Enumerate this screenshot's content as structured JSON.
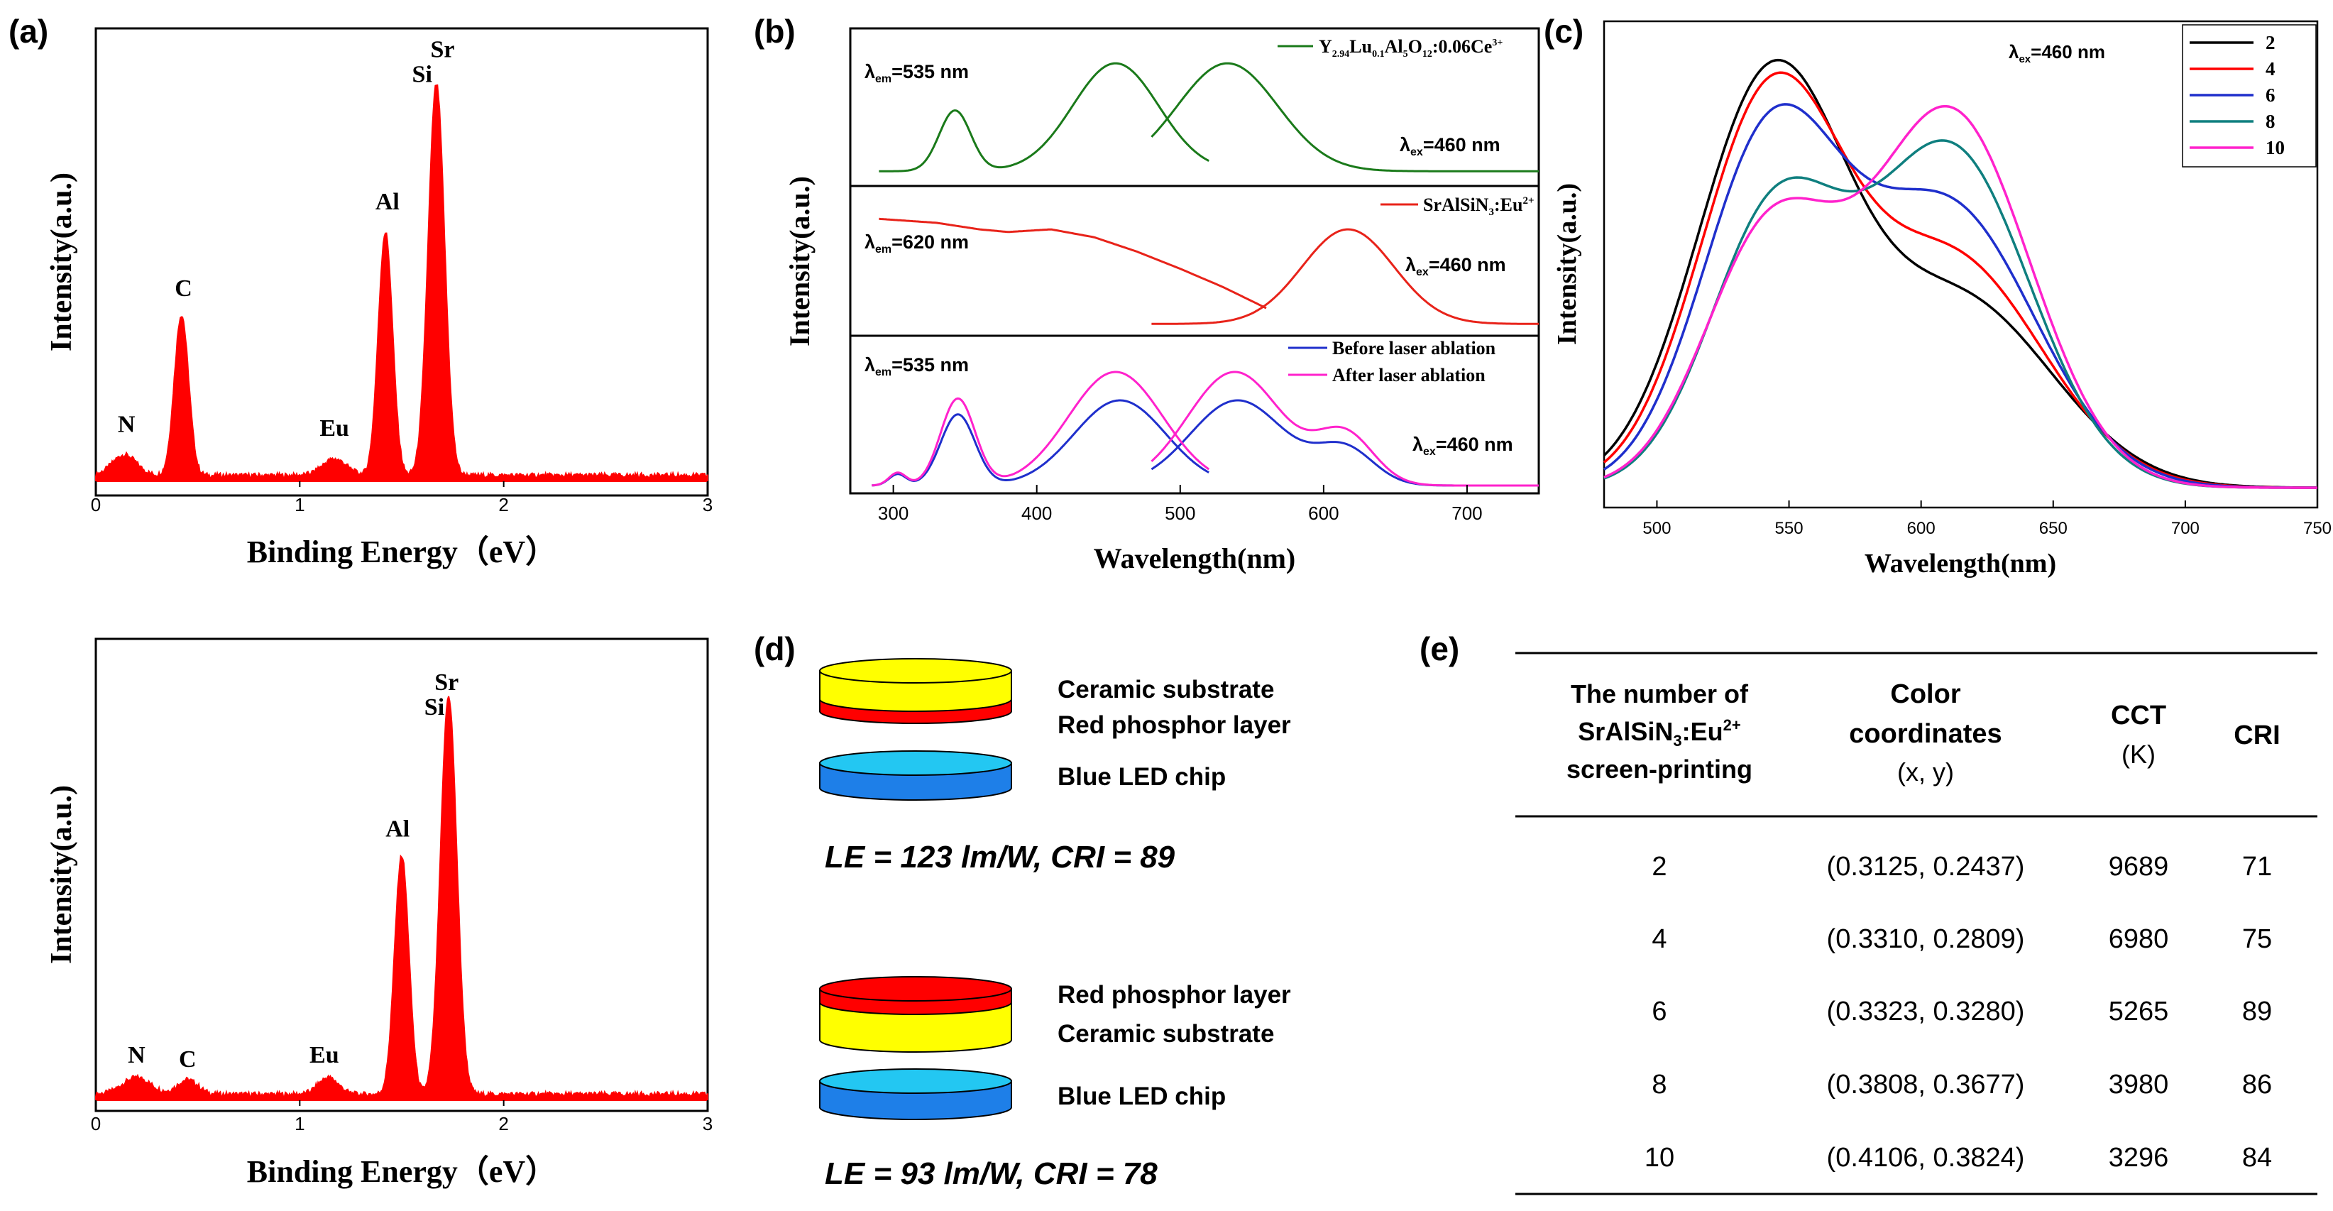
{
  "panel_labels": {
    "a": "(a)",
    "b": "(b)",
    "c": "(c)",
    "d": "(d)",
    "e": "(e)"
  },
  "chart_data": [
    {
      "id": "a-top",
      "type": "line",
      "title": "",
      "xlabel": "Binding Energy（eV）",
      "ylabel": "Intensity(a.u.)",
      "xlim": [
        0,
        3
      ],
      "ylim": [
        0,
        1
      ],
      "xticks": [
        "0",
        "1",
        "2",
        "3"
      ],
      "color": "#ff0000",
      "peaks": [
        {
          "center": 0.14,
          "height": 0.05,
          "width": 0.06
        },
        {
          "center": 0.42,
          "height": 0.39,
          "width": 0.035
        },
        {
          "center": 1.17,
          "height": 0.04,
          "width": 0.06
        },
        {
          "center": 1.42,
          "height": 0.59,
          "width": 0.035
        },
        {
          "center": 1.67,
          "height": 0.95,
          "width": 0.04
        }
      ],
      "annotations": [
        {
          "text": "N",
          "x": 0.15,
          "y": 0.12
        },
        {
          "text": "C",
          "x": 0.43,
          "y": 0.45
        },
        {
          "text": "Eu",
          "x": 1.17,
          "y": 0.11
        },
        {
          "text": "Al",
          "x": 1.43,
          "y": 0.66
        },
        {
          "text": "Si",
          "x": 1.6,
          "y": 0.97
        },
        {
          "text": "Sr",
          "x": 1.7,
          "y": 1.03
        }
      ]
    },
    {
      "id": "a-bottom",
      "type": "line",
      "title": "",
      "xlabel": "Binding Energy（eV）",
      "ylabel": "Intensity(a.u.)",
      "xlim": [
        0,
        3
      ],
      "ylim": [
        0,
        1
      ],
      "xticks": [
        "0",
        "1",
        "2",
        "3"
      ],
      "color": "#ff0000",
      "peaks": [
        {
          "center": 0.2,
          "height": 0.04,
          "width": 0.07
        },
        {
          "center": 0.45,
          "height": 0.035,
          "width": 0.05
        },
        {
          "center": 1.14,
          "height": 0.04,
          "width": 0.05
        },
        {
          "center": 1.5,
          "height": 0.57,
          "width": 0.035
        },
        {
          "center": 1.73,
          "height": 0.95,
          "width": 0.04
        }
      ],
      "annotations": [
        {
          "text": "N",
          "x": 0.2,
          "y": 0.09
        },
        {
          "text": "C",
          "x": 0.45,
          "y": 0.08
        },
        {
          "text": "Eu",
          "x": 1.12,
          "y": 0.09
        },
        {
          "text": "Al",
          "x": 1.48,
          "y": 0.63
        },
        {
          "text": "Si",
          "x": 1.66,
          "y": 0.92
        },
        {
          "text": "Sr",
          "x": 1.72,
          "y": 0.98
        }
      ]
    },
    {
      "id": "b",
      "type": "line",
      "title": "",
      "xlabel": "Wavelength(nm)",
      "ylabel": "Intensity(a.u.)",
      "xlim": [
        270,
        750
      ],
      "xticks": [
        300,
        400,
        500,
        600,
        700
      ],
      "subpanels": [
        {
          "legend": "Y2.94Lu0.1Al5O12:0.06Ce3+",
          "legend_parts": [
            "Y",
            "2.94",
            "Lu",
            "0.1",
            "Al",
            "5",
            "O",
            "12",
            ":0.06Ce",
            "3+"
          ],
          "labels": [
            {
              "pre": "λ",
              "sub": "em",
              "post": "=535 nm"
            },
            {
              "pre": "λ",
              "sub": "ex",
              "post": "=460 nm"
            }
          ],
          "series": [
            {
              "name": "excitation",
              "color": "#1a7a1a",
              "x_range": [
                290,
                520
              ],
              "peaks": [
                {
                  "center": 343,
                  "height": 0.45,
                  "width": 11
                },
                {
                  "center": 455,
                  "height": 0.8,
                  "width": 30
                }
              ]
            },
            {
              "name": "emission",
              "color": "#1a7a1a",
              "x_range": [
                480,
                750
              ],
              "peaks": [
                {
                  "center": 533,
                  "height": 0.8,
                  "width": 35
                }
              ]
            }
          ]
        },
        {
          "legend": "SrAlSiN3:Eu2+",
          "legend_parts": [
            "SrAlSiN",
            "3",
            ":Eu",
            "2+"
          ],
          "labels": [
            {
              "pre": "λ",
              "sub": "em",
              "post": "=620 nm"
            },
            {
              "pre": "λ",
              "sub": "ex",
              "post": "=460 nm"
            }
          ],
          "series": [
            {
              "name": "excitation",
              "color": "#e8231a",
              "x_range": [
                290,
                560
              ],
              "points": [
                [
                  290,
                  0.8
                ],
                [
                  330,
                  0.77
                ],
                [
                  360,
                  0.72
                ],
                [
                  380,
                  0.7
                ],
                [
                  410,
                  0.72
                ],
                [
                  440,
                  0.66
                ],
                [
                  470,
                  0.55
                ],
                [
                  500,
                  0.42
                ],
                [
                  530,
                  0.28
                ],
                [
                  560,
                  0.12
                ]
              ]
            },
            {
              "name": "emission",
              "color": "#e8231a",
              "x_range": [
                480,
                750
              ],
              "peaks": [
                {
                  "center": 617,
                  "height": 0.72,
                  "width": 32
                }
              ]
            }
          ]
        },
        {
          "legend": "",
          "legend_entries": [
            {
              "text": "Before laser ablation",
              "color": "#1f2fcc"
            },
            {
              "text": "After laser ablation",
              "color": "#ff22cc"
            }
          ],
          "labels": [
            {
              "pre": "λ",
              "sub": "em",
              "post": "=535 nm"
            },
            {
              "pre": "λ",
              "sub": "ex",
              "post": "=460 nm"
            }
          ],
          "series": [
            {
              "name": "Before laser ablation",
              "color": "#1f2fcc",
              "x_range": [
                285,
                520
              ],
              "peaks": [
                {
                  "center": 303,
                  "height": 0.08,
                  "width": 6
                },
                {
                  "center": 345,
                  "height": 0.5,
                  "width": 12
                },
                {
                  "center": 458,
                  "height": 0.6,
                  "width": 32
                }
              ]
            },
            {
              "name": "Before laser ablation emission",
              "color": "#1f2fcc",
              "x_range": [
                480,
                750
              ],
              "peaks": [
                {
                  "center": 540,
                  "height": 0.6,
                  "width": 33
                },
                {
                  "center": 615,
                  "height": 0.25,
                  "width": 20
                }
              ]
            },
            {
              "name": "After laser ablation",
              "color": "#ff22cc",
              "x_range": [
                285,
                520
              ],
              "peaks": [
                {
                  "center": 303,
                  "height": 0.09,
                  "width": 6
                },
                {
                  "center": 345,
                  "height": 0.61,
                  "width": 12
                },
                {
                  "center": 455,
                  "height": 0.8,
                  "width": 33
                }
              ]
            },
            {
              "name": "After laser ablation emission",
              "color": "#ff22cc",
              "x_range": [
                480,
                750
              ],
              "peaks": [
                {
                  "center": 538,
                  "height": 0.8,
                  "width": 33
                },
                {
                  "center": 615,
                  "height": 0.35,
                  "width": 20
                }
              ]
            }
          ]
        }
      ]
    },
    {
      "id": "c",
      "type": "line",
      "title": "",
      "xlabel": "Wavelength(nm)",
      "ylabel": "Intensity(a.u.)",
      "xlim": [
        480,
        750
      ],
      "ylim": [
        0,
        1
      ],
      "xticks": [
        500,
        550,
        600,
        650,
        700,
        750
      ],
      "annotation": {
        "pre": "λ",
        "sub": "ex",
        "post": "=460 nm"
      },
      "series": [
        {
          "name": "2",
          "color": "#000000",
          "peaks": [
            {
              "center": 543,
              "height": 0.98,
              "width": 28
            },
            {
              "center": 615,
              "height": 0.45,
              "width": 35
            }
          ]
        },
        {
          "name": "4",
          "color": "#ff0000",
          "peaks": [
            {
              "center": 543,
              "height": 0.93,
              "width": 27
            },
            {
              "center": 612,
              "height": 0.55,
              "width": 34
            }
          ]
        },
        {
          "name": "6",
          "color": "#1f2fcc",
          "peaks": [
            {
              "center": 543,
              "height": 0.83,
              "width": 26
            },
            {
              "center": 610,
              "height": 0.68,
              "width": 33
            }
          ]
        },
        {
          "name": "8",
          "color": "#0f7f7f",
          "peaks": [
            {
              "center": 545,
              "height": 0.66,
              "width": 25
            },
            {
              "center": 611,
              "height": 0.82,
              "width": 30
            }
          ]
        },
        {
          "name": "10",
          "color": "#ff22cc",
          "peaks": [
            {
              "center": 543,
              "height": 0.61,
              "width": 25
            },
            {
              "center": 611,
              "height": 0.91,
              "width": 30
            }
          ]
        }
      ]
    }
  ],
  "diagram_d": {
    "stacks": [
      {
        "layers": [
          "Ceramic substrate",
          "Red phosphor layer",
          "Blue LED chip"
        ],
        "result": "LE = 123 lm/W, CRI = 89"
      },
      {
        "layers": [
          "Red phosphor layer",
          "Ceramic substrate",
          "Blue LED chip"
        ],
        "result": "LE = 93 lm/W, CRI = 78"
      }
    ],
    "colors": {
      "yellow": "#ffff00",
      "red": "#ff0000",
      "blue": "#1e7fe8",
      "light_blue": "#23c7f2"
    }
  },
  "table_e": {
    "header": {
      "col1": {
        "line1": "The number of",
        "line2_main": "SrAlSiN",
        "line2_sub": "3",
        "line2_mid": ":Eu",
        "line2_sup": "2+",
        "line3": "screen-printing"
      },
      "col2": {
        "line1": "Color",
        "line2": "coordinates",
        "line3": "(x,  y)"
      },
      "col3": {
        "line1": "CCT",
        "line2": "(K)"
      },
      "col4": {
        "line1": "CRI"
      }
    },
    "rows": [
      {
        "n": "2",
        "coord": "(0.3125, 0.2437)",
        "cct": "9689",
        "cri": "71"
      },
      {
        "n": "4",
        "coord": "(0.3310, 0.2809)",
        "cct": "6980",
        "cri": "75"
      },
      {
        "n": "6",
        "coord": "(0.3323, 0.3280)",
        "cct": "5265",
        "cri": "89"
      },
      {
        "n": "8",
        "coord": "(0.3808, 0.3677)",
        "cct": "3980",
        "cri": "86"
      },
      {
        "n": "10",
        "coord": "(0.4106, 0.3824)",
        "cct": "3296",
        "cri": "84"
      }
    ]
  }
}
